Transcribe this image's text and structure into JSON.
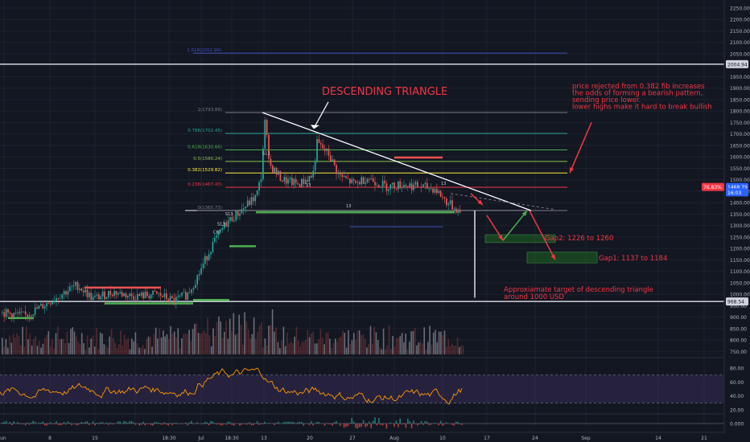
{
  "chart_data": {
    "type": "candlestick",
    "price_axis": {
      "min": 700,
      "max": 2250,
      "ticks": [
        2250,
        2200,
        2150,
        2100,
        2050,
        1950,
        1900,
        1850,
        1800,
        1750,
        1700,
        1650,
        1600,
        1550,
        1500,
        1450,
        1400,
        1350,
        1300,
        1250,
        1200,
        1150,
        1100,
        1050,
        1000,
        950,
        900,
        850,
        800,
        750
      ]
    },
    "price_tags": [
      {
        "value": "2004.94",
        "price": 2004.94,
        "color": "#d1d4dc",
        "text_color": "#131722"
      },
      {
        "value": "1468.79",
        "price": 1468.79,
        "color": "#2962ff",
        "text_color": "#ffffff"
      },
      {
        "value": "76.83%",
        "price": 1468.79,
        "color": "#f23645",
        "text_color": "#ffffff"
      },
      {
        "value": "16:03",
        "price": 1445,
        "color": "#2962ff",
        "text_color": "#ffffff"
      },
      {
        "value": "968.54",
        "price": 968.54,
        "color": "#d1d4dc",
        "text_color": "#131722"
      }
    ],
    "x_axis_labels": [
      "Jun",
      "8",
      "15",
      "18:30",
      "Jul",
      "18:30",
      "13",
      "20",
      "27",
      "Aug",
      "10",
      "17",
      "24",
      "Sep",
      "14",
      "21"
    ],
    "rsi_axis_ticks": [
      "80.00",
      "60.00",
      "40.00",
      "20.00"
    ],
    "macd_axis_ticks": [
      "0.000"
    ],
    "fib_levels": [
      {
        "label": "1.618(2052.96)",
        "ratio": 1.618,
        "price": 2052.96,
        "color": "#3f51b5"
      },
      {
        "label": "1(1793.89)",
        "ratio": 1,
        "price": 1793.89,
        "color": "#787b86"
      },
      {
        "label": "0.786(1702.45)",
        "ratio": 0.786,
        "price": 1702.45,
        "color": "#26a69a"
      },
      {
        "label": "0.618(1630.66)",
        "ratio": 0.618,
        "price": 1630.66,
        "color": "#4caf50"
      },
      {
        "label": "0.5(1580.24)",
        "ratio": 0.5,
        "price": 1580.24,
        "color": "#8bc34a"
      },
      {
        "label": "0.382(1529.82)",
        "ratio": 0.382,
        "price": 1529.82,
        "color": "#ffeb3b"
      },
      {
        "label": "0.236(1467.43)",
        "ratio": 0.236,
        "price": 1467.43,
        "color": "#f23645"
      },
      {
        "label": "0(1365.73)",
        "ratio": 0,
        "price": 1365.73,
        "color": "#787b86"
      }
    ],
    "annotations": {
      "title": "DESCENDING TRIANGLE",
      "analysis_lines": [
        "price rejected from 0.382 fib increases",
        "the odds of forming a bearish pattern,",
        "sending price lower.",
        "lower highs make it hard to break bullish"
      ],
      "gap2": "Gap2: 1226 to 1260",
      "gap1": "Gap1: 1137 to 1184",
      "target_lines": [
        "Approxiamate target of descending triangle",
        "around 1000 USD"
      ]
    },
    "candle_markers": [
      "S13",
      "13",
      "S13",
      "C63",
      "S13",
      "13",
      "13"
    ],
    "colors": {
      "background": "#131722",
      "up": "#26a69a",
      "down": "#ef5350",
      "annotation": "#f23645",
      "arrow_up": "#4caf50",
      "rsi_line": "#ff9800",
      "rsi_band": "#7e57c2"
    }
  }
}
